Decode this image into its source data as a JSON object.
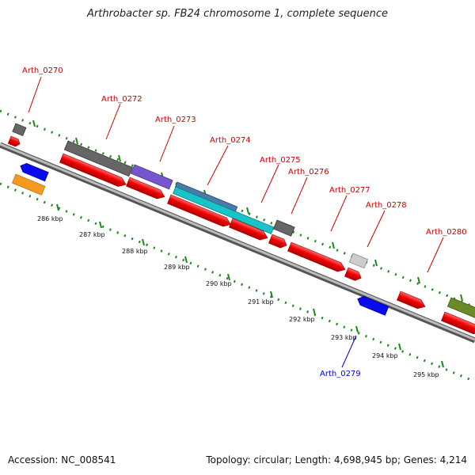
{
  "title": "Arthrobacter sp. FB24 chromosome 1, complete sequence",
  "accession": "Accession: NC_008541",
  "topology": "Topology: circular; Length: 4,698,945 bp; Genes: 4,214",
  "colors": {
    "backbone": "#888888",
    "ticks": "#1b8a1b",
    "gene_label": "#cc0000",
    "gene_label_alt": "#0000cc",
    "red": "#ee0000",
    "gray": "#666666",
    "light_gray": "#cccccc",
    "blue": "#0a0aee",
    "orange": "#f49a20",
    "purple": "#7755cc",
    "steel": "#4a7aa8",
    "cyan": "#18c4c8",
    "olive": "#6a8a2a"
  },
  "scale_labels": [
    "286 kbp",
    "287 kbp",
    "288 kbp",
    "289 kbp",
    "290 kbp",
    "291 kbp",
    "292 kbp",
    "293 kbp",
    "294 kbp",
    "295 kbp"
  ],
  "gene_labels": [
    "Arth_0270",
    "Arth_0272",
    "Arth_0273",
    "Arth_0274",
    "Arth_0275",
    "Arth_0276",
    "Arth_0277",
    "Arth_0278",
    "Arth_0280",
    "Arth_0279"
  ]
}
